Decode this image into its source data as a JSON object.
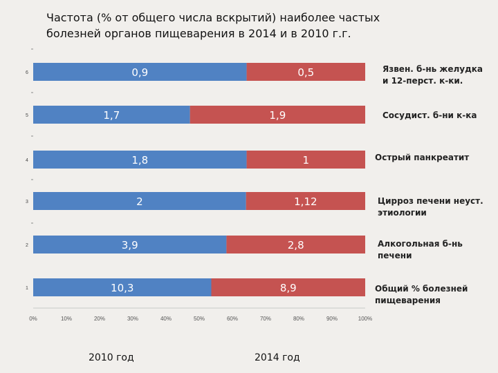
{
  "title": {
    "line1": "Частота (% от общего числа вскрытий) наиболее частых",
    "line2": "болезней органов пищеварения в 2014 и в 2010 г.г."
  },
  "categories": [
    {
      "line1": "Язвен. б-нь желудка",
      "line2": "и 12-перст. к-ки."
    },
    {
      "line1": "Сосудист. б-ни к-ка",
      "line2": ""
    },
    {
      "line1": "Острый панкреатит",
      "line2": ""
    },
    {
      "line1": "Цирроз печени неуст.",
      "line2": "этиологии"
    },
    {
      "line1": "Алкогольная б-нь",
      "line2": "печени"
    },
    {
      "line1": "Общий % болезней",
      "line2": "пищеварения"
    }
  ],
  "legend": {
    "series1": "2010 год",
    "series2": "2014 год"
  },
  "colors": {
    "series1": "#5082c3",
    "series2": "#c55351",
    "background": "#f1efec"
  },
  "chart_data": {
    "type": "bar",
    "orientation": "horizontal",
    "stacking": "percent",
    "title": "Частота (% от общего числа вскрытий) наиболее частых болезней органов пищеварения в 2014 и в 2010 г.г.",
    "categories": [
      "6",
      "5",
      "4",
      "3",
      "2",
      "1"
    ],
    "series": [
      {
        "name": "2010 год",
        "values": [
          0.9,
          1.7,
          1.8,
          2,
          3.9,
          10.3
        ],
        "labels": [
          "0,9",
          "1,7",
          "1,8",
          "2",
          "3,9",
          "10,3"
        ]
      },
      {
        "name": "2014 год",
        "values": [
          0.5,
          1.9,
          1,
          1.12,
          2.8,
          8.9
        ],
        "labels": [
          "0,5",
          "1,9",
          "1",
          "1,12",
          "2,8",
          "8,9"
        ]
      }
    ],
    "xticks": [
      "0%",
      "10%",
      "20%",
      "30%",
      "40%",
      "50%",
      "60%",
      "70%",
      "80%",
      "90%",
      "100%"
    ],
    "xlim": [
      0,
      100
    ],
    "legend_position": "bottom"
  }
}
